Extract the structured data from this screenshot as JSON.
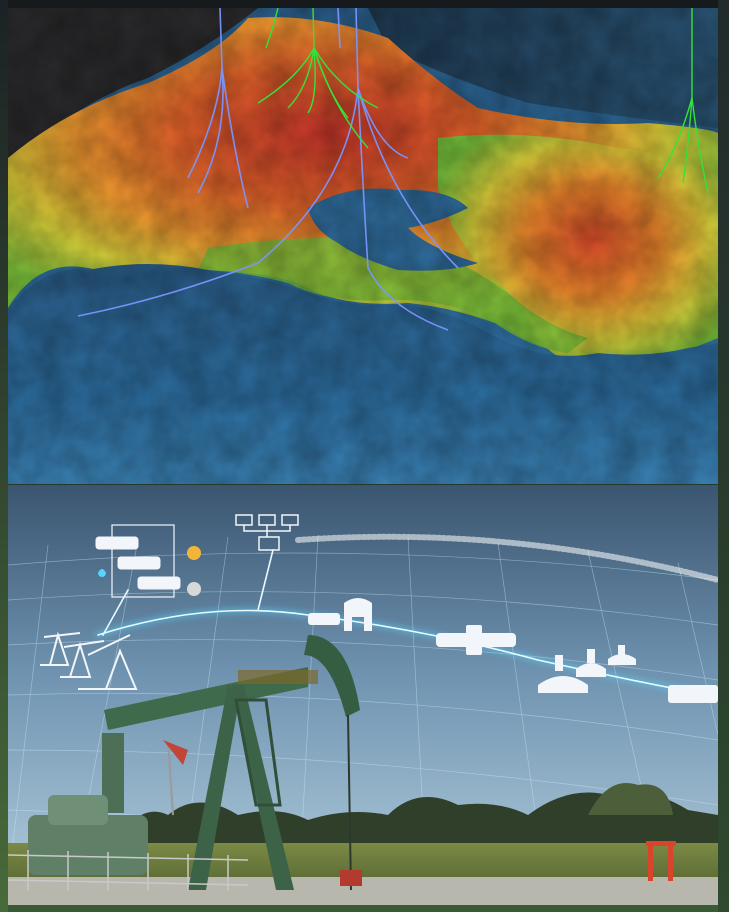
{
  "image": {
    "top_panel": {
      "subject": "3d-reservoir-terrain-with-well-paths",
      "colors": {
        "high": "#d8452a",
        "mid_orange": "#ef8a2c",
        "yellow": "#d9d43a",
        "green": "#6dbb3a",
        "low_blue": "#2e6fa0",
        "rock": "#2a2a2c",
        "well_blue": "#6f8fff",
        "well_green": "#3ddc3a"
      }
    },
    "bottom_panel": {
      "subject": "oil-pumpjack-with-digital-network-overlay",
      "colors": {
        "sky_top": "#3d5b77",
        "sky_bottom": "#a9c4d6",
        "grid_line": "#bfe6ff",
        "glow": "#59d4ff",
        "pumpjack": "#3f6a4b",
        "field": "#6a7a3a",
        "icon_fill": "#f2f6fa"
      },
      "icons": [
        "process-diagram-icon",
        "network-icon",
        "compressor-icon",
        "pipeline-valve-icon",
        "pumpjacks-icon",
        "fire-icon",
        "water-drop-icon",
        "gear-icon",
        "pressure-valve-icon"
      ]
    }
  }
}
